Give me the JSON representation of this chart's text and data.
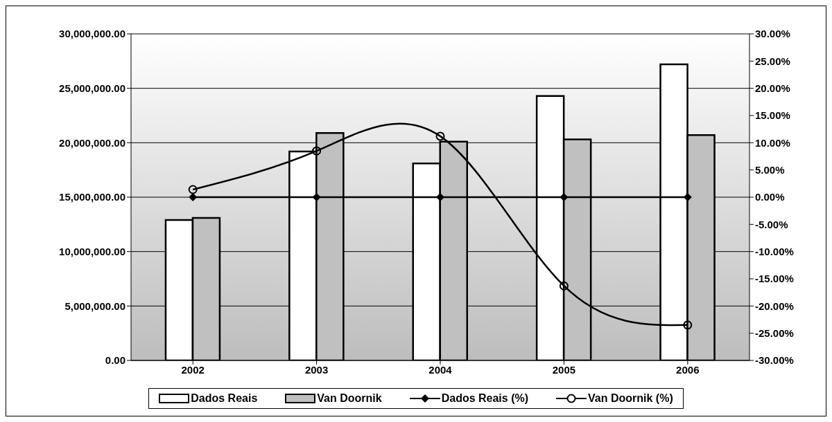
{
  "chart_data": {
    "type": "bar",
    "categories": [
      "2002",
      "2003",
      "2004",
      "2005",
      "2006"
    ],
    "series": [
      {
        "name": "Dados Reais",
        "color": "#ffffff",
        "values": [
          12900000,
          19200000,
          18100000,
          24300000,
          27200000
        ]
      },
      {
        "name": "Van Doornik",
        "color": "#c0c0c0",
        "values": [
          13100000,
          20900000,
          20100000,
          20300000,
          20700000
        ]
      },
      {
        "name": "Dados Reais (%)",
        "type": "line",
        "axis": "y2",
        "color": "#000000",
        "marker": "diamond",
        "values": [
          0,
          0,
          0,
          0,
          0
        ]
      },
      {
        "name": "Van Doornik (%)",
        "type": "line",
        "axis": "y2",
        "color": "#000000",
        "marker": "circle",
        "values": [
          1.4,
          8.5,
          11.2,
          -16.3,
          -23.5
        ]
      }
    ],
    "ylim": [
      0,
      30000000
    ],
    "yticks": [
      {
        "value": 0,
        "label": "0.00"
      },
      {
        "value": 5000000,
        "label": "5,000,000.00"
      },
      {
        "value": 10000000,
        "label": "10,000,000.00"
      },
      {
        "value": 15000000,
        "label": "15,000,000.00"
      },
      {
        "value": 20000000,
        "label": "20,000,000.00"
      },
      {
        "value": 25000000,
        "label": "25,000,000.00"
      },
      {
        "value": 30000000,
        "label": "30,000,000.00"
      }
    ],
    "y2lim": [
      -30,
      30
    ],
    "y2ticks": [
      {
        "value": -30,
        "label": "-30.00%"
      },
      {
        "value": -25,
        "label": "-25.00%"
      },
      {
        "value": -20,
        "label": "-20.00%"
      },
      {
        "value": -15,
        "label": "-15.00%"
      },
      {
        "value": -10,
        "label": "-10.00%"
      },
      {
        "value": -5,
        "label": "-5.00%"
      },
      {
        "value": 0,
        "label": "0.00%"
      },
      {
        "value": 5,
        "label": "5.00%"
      },
      {
        "value": 10,
        "label": "10.00%"
      },
      {
        "value": 15,
        "label": "15.00%"
      },
      {
        "value": 20,
        "label": "20.00%"
      },
      {
        "value": 25,
        "label": "25.00%"
      },
      {
        "value": 30,
        "label": "30.00%"
      }
    ],
    "grid": "y",
    "legend": "bottom",
    "line_style": "solid"
  }
}
